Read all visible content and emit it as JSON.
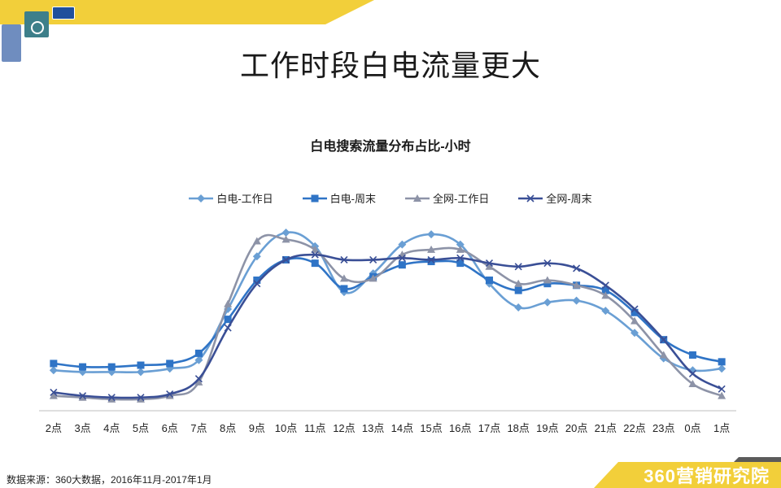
{
  "page": {
    "title": "工作时段白电流量更大",
    "source": "数据来源：360大数据，2016年11月-2017年1月",
    "brand_number": "360",
    "brand_text": "营销研究院"
  },
  "colors": {
    "accent_yellow": "#f2cf3a",
    "dark_grey": "#5b5b5b"
  },
  "icons": [
    "tv-icon",
    "washing-machine-icon",
    "fridge-icon"
  ],
  "chart_data": {
    "type": "line",
    "title": "白电搜索流量分布占比-小时",
    "xlabel": "",
    "ylabel": "",
    "categories": [
      "2点",
      "3点",
      "4点",
      "5点",
      "6点",
      "7点",
      "8点",
      "9点",
      "10点",
      "11点",
      "12点",
      "13点",
      "14点",
      "15点",
      "16点",
      "17点",
      "18点",
      "19点",
      "20点",
      "21点",
      "22点",
      "23点",
      "0点",
      "1点"
    ],
    "ylim": [
      0,
      100
    ],
    "grid": false,
    "legend_position": "top",
    "series": [
      {
        "name": "白电-工作日",
        "color": "#6a9fd4",
        "marker": "diamond",
        "values": [
          19,
          18,
          18,
          18,
          20,
          25,
          55,
          86,
          100,
          92,
          65,
          76,
          93,
          99,
          93,
          70,
          56,
          59,
          60,
          54,
          41,
          26,
          19,
          20
        ]
      },
      {
        "name": "白电-周末",
        "color": "#2f74c6",
        "marker": "square",
        "values": [
          23,
          21,
          21,
          22,
          23,
          29,
          49,
          72,
          84,
          82,
          67,
          74,
          81,
          83,
          82,
          72,
          66,
          70,
          69,
          66,
          53,
          37,
          28,
          24
        ]
      },
      {
        "name": "全网-工作日",
        "color": "#8d93a7",
        "marker": "triangle",
        "values": [
          4,
          3,
          2,
          2,
          4,
          12,
          58,
          95,
          96,
          90,
          73,
          73,
          87,
          90,
          90,
          80,
          70,
          72,
          69,
          63,
          48,
          28,
          11,
          4
        ]
      },
      {
        "name": "全网-周末",
        "color": "#3a4f96",
        "marker": "x",
        "values": [
          6,
          4,
          3,
          3,
          5,
          14,
          44,
          70,
          84,
          87,
          84,
          84,
          85,
          84,
          85,
          82,
          80,
          82,
          79,
          69,
          55,
          37,
          17,
          8
        ]
      }
    ]
  }
}
